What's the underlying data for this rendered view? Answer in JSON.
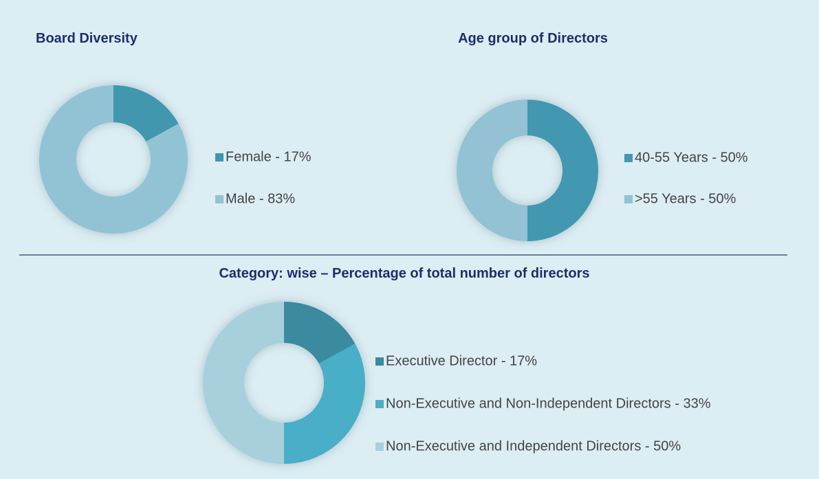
{
  "chart_data": [
    {
      "type": "donut",
      "title": "Board Diversity",
      "categories": [
        "Female - 17%",
        "Male - 83%"
      ],
      "values": [
        17,
        83
      ],
      "colors": [
        "#3f97ae",
        "#92c3d5"
      ]
    },
    {
      "type": "donut",
      "title": "Age group of Directors",
      "categories": [
        "40-55 Years - 50%",
        ">55 Years - 50%"
      ],
      "values": [
        50,
        50
      ],
      "colors": [
        "#4298b0",
        "#92c2d4"
      ]
    },
    {
      "type": "donut",
      "title": "Category: wise – Percentage of total number of directors",
      "categories": [
        "Executive Director - 17%",
        "Non-Executive and Non-Independent Directors - 33%",
        "Non-Executive and Independent Directors - 50%"
      ],
      "values": [
        17,
        33,
        50
      ],
      "colors": [
        "#3a8aa0",
        "#4aaec8",
        "#a8cfdc"
      ]
    }
  ]
}
